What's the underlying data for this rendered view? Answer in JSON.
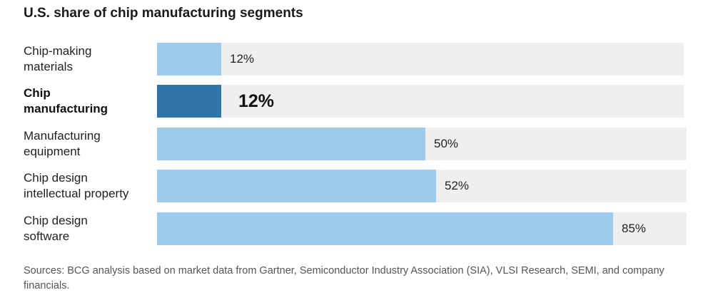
{
  "chart_data": {
    "type": "bar",
    "orientation": "horizontal",
    "title": "U.S. share of chip manufacturing segments",
    "categories": [
      "Chip-making\nmaterials",
      "Chip\nmanufacturing",
      "Manufacturing\nequipment",
      "Chip design\nintellectual property",
      "Chip design\nsoftware"
    ],
    "values": [
      12,
      12,
      50,
      52,
      85
    ],
    "value_labels": [
      "12%",
      "12%",
      "50%",
      "52%",
      "85%"
    ],
    "highlighted_category": "Chip\nmanufacturing",
    "xlim": [
      0,
      100
    ],
    "unit": "%",
    "grid": false,
    "legend": "none",
    "colors": {
      "bar": "#9ccbeb",
      "highlight_bar": "#2f75a8",
      "track": "#efefef"
    }
  },
  "source_note": "Sources: BCG analysis based on market data from Gartner, Semiconductor Industry Association (SIA), VLSI Research, SEMI, and company financials."
}
